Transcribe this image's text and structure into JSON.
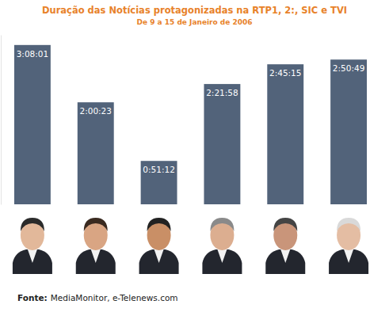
{
  "chart_data": {
    "type": "bar",
    "title": "Duração das Notícias protagonizadas na RTP1, 2:, SIC e TVI",
    "subtitle": "De 9 a 15 de Janeiro de 2006",
    "annotations": [
      "Fonte:",
      "MediaMonitor, e-Telenews.com"
    ],
    "categories": [
      null,
      null,
      null,
      null,
      null,
      null
    ],
    "values": [
      11281,
      7223,
      3072,
      8518,
      9915,
      10249
    ],
    "value_labels": [
      "3:08:01",
      "2:00:23",
      "0:51:12",
      "2:21:58",
      "2:45:15",
      "2:50:49"
    ],
    "data_labels": true,
    "color": "#52637a",
    "ylim": [
      0,
      12000
    ],
    "tick_labels": false,
    "grid": false
  }
}
